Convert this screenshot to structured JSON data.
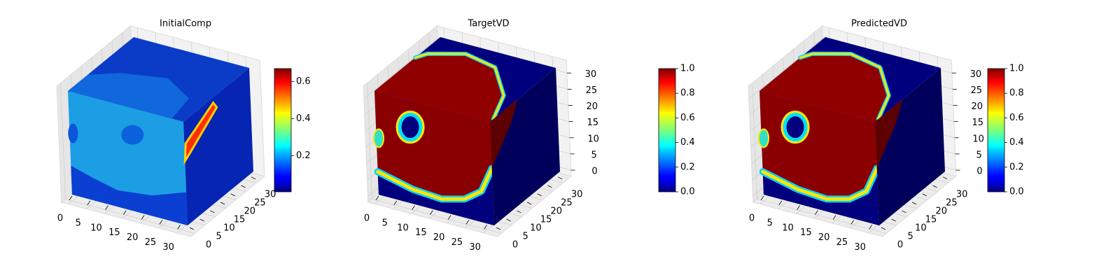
{
  "chart_data": [
    {
      "type": "voxel",
      "title": "InitialComp",
      "xlim": [
        0,
        32
      ],
      "ylim": [
        0,
        32
      ],
      "zlim": [
        0,
        32
      ],
      "xticks": [
        0,
        5,
        10,
        15,
        20,
        25,
        30
      ],
      "yticks": [
        0,
        5,
        10,
        15,
        20,
        25,
        30
      ],
      "colorbar": {
        "cmap": "jet",
        "lim": [
          0.005,
          0.67
        ],
        "ticks": [
          0.2,
          0.4,
          0.6
        ]
      }
    },
    {
      "type": "voxel",
      "title": "TargetVD",
      "xlim": [
        0,
        32
      ],
      "ylim": [
        0,
        32
      ],
      "zlim": [
        0,
        32
      ],
      "xticks": [
        0,
        5,
        10,
        15,
        20,
        25,
        30
      ],
      "yticks": [
        0,
        5,
        10,
        15,
        20,
        25,
        30
      ],
      "zticks": [
        0,
        5,
        10,
        15,
        20,
        25,
        30
      ],
      "colorbar": {
        "cmap": "jet",
        "lim": [
          0,
          1
        ],
        "ticks": [
          {
            "value": 0,
            "label": "0.0"
          },
          0.2,
          0.4,
          0.6,
          0.8,
          {
            "value": 1,
            "label": "1.0"
          }
        ]
      }
    },
    {
      "type": "voxel",
      "title": "PredictedVD",
      "xlim": [
        0,
        32
      ],
      "ylim": [
        0,
        32
      ],
      "zlim": [
        0,
        32
      ],
      "xticks": [
        0,
        5,
        10,
        15,
        20,
        25,
        30
      ],
      "yticks": [
        0,
        5,
        10,
        15,
        20,
        25,
        30
      ],
      "zticks": [
        0,
        5,
        10,
        15,
        20,
        25,
        30
      ],
      "colorbar": {
        "cmap": "jet",
        "lim": [
          0,
          1
        ],
        "ticks": [
          {
            "value": 0,
            "label": "0.0"
          },
          0.2,
          0.4,
          0.6,
          0.8,
          {
            "value": 1,
            "label": "1.0"
          }
        ]
      }
    }
  ]
}
